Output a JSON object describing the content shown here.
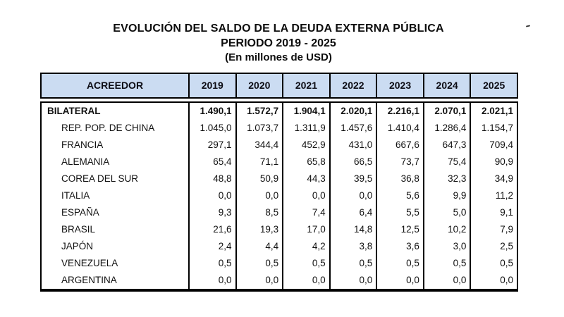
{
  "title": {
    "line1": "EVOLUCIÓN DEL SALDO DE LA DEUDA EXTERNA PÚBLICA",
    "line2": "PERIODO 2019 - 2025",
    "line3": "(En millones de USD)"
  },
  "table": {
    "header": [
      "ACREEDOR",
      "2019",
      "2020",
      "2021",
      "2022",
      "2023",
      "2024",
      "2025"
    ],
    "rows": [
      {
        "label": "BILATERAL",
        "bold": true,
        "values": [
          "1.490,1",
          "1.572,7",
          "1.904,1",
          "2.020,1",
          "2.216,1",
          "2.070,1",
          "2.021,1"
        ]
      },
      {
        "label": "REP. POP. DE CHINA",
        "bold": false,
        "values": [
          "1.045,0",
          "1.073,7",
          "1.311,9",
          "1.457,6",
          "1.410,4",
          "1.286,4",
          "1.154,7"
        ]
      },
      {
        "label": "FRANCIA",
        "bold": false,
        "values": [
          "297,1",
          "344,4",
          "452,9",
          "431,0",
          "667,6",
          "647,3",
          "709,4"
        ]
      },
      {
        "label": "ALEMANIA",
        "bold": false,
        "values": [
          "65,4",
          "71,1",
          "65,8",
          "66,5",
          "73,7",
          "75,4",
          "90,9"
        ]
      },
      {
        "label": "COREA DEL SUR",
        "bold": false,
        "values": [
          "48,8",
          "50,9",
          "44,3",
          "39,5",
          "36,8",
          "32,3",
          "34,9"
        ]
      },
      {
        "label": "ITALIA",
        "bold": false,
        "values": [
          "0,0",
          "0,0",
          "0,0",
          "0,0",
          "5,6",
          "9,9",
          "11,2"
        ]
      },
      {
        "label": "ESPAÑA",
        "bold": false,
        "values": [
          "9,3",
          "8,5",
          "7,4",
          "6,4",
          "5,5",
          "5,0",
          "9,1"
        ]
      },
      {
        "label": "BRASIL",
        "bold": false,
        "values": [
          "21,6",
          "19,3",
          "17,0",
          "14,8",
          "12,5",
          "10,2",
          "7,9"
        ]
      },
      {
        "label": "JAPÓN",
        "bold": false,
        "values": [
          "2,4",
          "4,4",
          "4,2",
          "3,8",
          "3,6",
          "3,0",
          "2,5"
        ]
      },
      {
        "label": "VENEZUELA",
        "bold": false,
        "values": [
          "0,5",
          "0,5",
          "0,5",
          "0,5",
          "0,5",
          "0,5",
          "0,5"
        ]
      },
      {
        "label": "ARGENTINA",
        "bold": false,
        "values": [
          "0,0",
          "0,0",
          "0,0",
          "0,0",
          "0,0",
          "0,0",
          "0,0"
        ]
      }
    ]
  },
  "chart_data": {
    "type": "table",
    "title": "EVOLUCIÓN DEL SALDO DE LA DEUDA EXTERNA PÚBLICA",
    "subtitle": "PERIODO 2019 - 2025",
    "units": "En millones de USD",
    "categories": [
      "2019",
      "2020",
      "2021",
      "2022",
      "2023",
      "2024",
      "2025"
    ],
    "series": [
      {
        "name": "BILATERAL",
        "values": [
          1490.1,
          1572.7,
          1904.1,
          2020.1,
          2216.1,
          2070.1,
          2021.1
        ]
      },
      {
        "name": "REP. POP. DE CHINA",
        "values": [
          1045.0,
          1073.7,
          1311.9,
          1457.6,
          1410.4,
          1286.4,
          1154.7
        ]
      },
      {
        "name": "FRANCIA",
        "values": [
          297.1,
          344.4,
          452.9,
          431.0,
          667.6,
          647.3,
          709.4
        ]
      },
      {
        "name": "ALEMANIA",
        "values": [
          65.4,
          71.1,
          65.8,
          66.5,
          73.7,
          75.4,
          90.9
        ]
      },
      {
        "name": "COREA DEL SUR",
        "values": [
          48.8,
          50.9,
          44.3,
          39.5,
          36.8,
          32.3,
          34.9
        ]
      },
      {
        "name": "ITALIA",
        "values": [
          0.0,
          0.0,
          0.0,
          0.0,
          5.6,
          9.9,
          11.2
        ]
      },
      {
        "name": "ESPAÑA",
        "values": [
          9.3,
          8.5,
          7.4,
          6.4,
          5.5,
          5.0,
          9.1
        ]
      },
      {
        "name": "BRASIL",
        "values": [
          21.6,
          19.3,
          17.0,
          14.8,
          12.5,
          10.2,
          7.9
        ]
      },
      {
        "name": "JAPÓN",
        "values": [
          2.4,
          4.4,
          4.2,
          3.8,
          3.6,
          3.0,
          2.5
        ]
      },
      {
        "name": "VENEZUELA",
        "values": [
          0.5,
          0.5,
          0.5,
          0.5,
          0.5,
          0.5,
          0.5
        ]
      },
      {
        "name": "ARGENTINA",
        "values": [
          0.0,
          0.0,
          0.0,
          0.0,
          0.0,
          0.0,
          0.0
        ]
      }
    ]
  },
  "colors": {
    "header_bg": "#cbdcf2",
    "border": "#000000",
    "text": "#111111"
  }
}
